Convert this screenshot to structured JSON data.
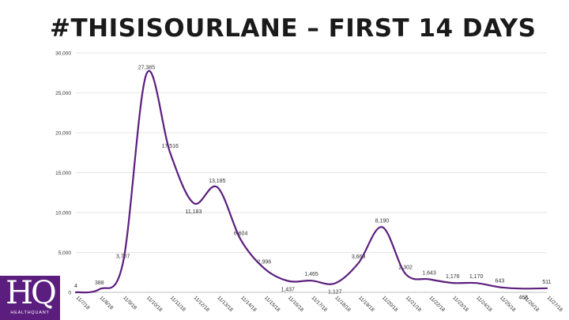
{
  "slide": {
    "title": "#THISISOURLANE – FIRST 14 DAYS"
  },
  "logo": {
    "mark": "HQ",
    "name": "HEALTHQUANT"
  },
  "colors": {
    "line": "#5b1e7e",
    "grid": "#e6e6e6",
    "text": "#333333",
    "logo_bg": "#5b1e7e"
  },
  "chart_data": {
    "type": "line",
    "title": "",
    "xlabel": "",
    "ylabel": "",
    "ylim": [
      0,
      30000
    ],
    "yticks": [
      0,
      5000,
      10000,
      15000,
      20000,
      25000,
      30000
    ],
    "ytick_labels": [
      "0",
      "5,000",
      "10,000",
      "15,000",
      "20,000",
      "25,000",
      "30,000"
    ],
    "grid": true,
    "legend": "none",
    "smooth": true,
    "categories": [
      "11/7/18",
      "11/8/18",
      "11/9/18",
      "11/10/18",
      "11/11/18",
      "11/12/18",
      "11/13/18",
      "11/14/18",
      "11/15/18",
      "11/16/18",
      "11/17/18",
      "11/18/18",
      "11/19/18",
      "11/20/18",
      "11/21/18",
      "11/22/18",
      "11/23/18",
      "11/24/18",
      "11/25/18",
      "11/26/18",
      "11/27/18"
    ],
    "values": [
      4,
      388,
      3707,
      27385,
      17516,
      11183,
      13185,
      6604,
      2996,
      1437,
      1465,
      1127,
      3669,
      8190,
      2302,
      1643,
      1176,
      1170,
      643,
      468,
      511
    ],
    "data_labels": [
      "4",
      "388",
      "3,707",
      "27,385",
      "17,516",
      "11,183",
      "13,185",
      "6,604",
      "2,996",
      "1,437",
      "1,465",
      "1,127",
      "3,669",
      "8,190",
      "2,302",
      "1,643",
      "1,176",
      "1,170",
      "643",
      "468",
      "511"
    ]
  }
}
